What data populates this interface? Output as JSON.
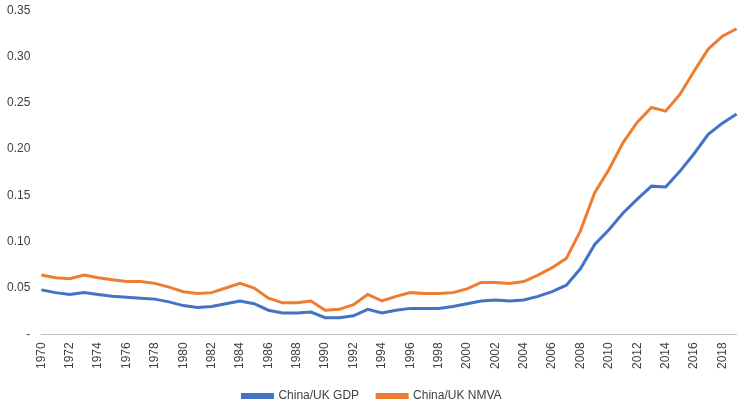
{
  "chart_data": {
    "type": "line",
    "categories": [
      1970,
      null,
      1972,
      null,
      1974,
      null,
      1976,
      null,
      1978,
      null,
      1980,
      null,
      1982,
      null,
      1984,
      null,
      1986,
      null,
      1988,
      null,
      1990,
      null,
      1992,
      null,
      1994,
      null,
      1996,
      null,
      1998,
      null,
      2000,
      null,
      2002,
      null,
      2004,
      null,
      2006,
      null,
      2008,
      null,
      2010,
      null,
      2012,
      null,
      2014,
      null,
      2016,
      null,
      2018,
      null
    ],
    "series": [
      {
        "name": "China/UK GDP",
        "color": "#4472c4",
        "values": [
          0.048,
          0.045,
          0.043,
          0.045,
          0.043,
          0.041,
          0.04,
          0.039,
          0.038,
          0.035,
          0.031,
          0.029,
          0.03,
          0.033,
          0.036,
          0.033,
          0.026,
          0.023,
          0.023,
          0.024,
          0.018,
          0.018,
          0.02,
          0.027,
          0.023,
          0.026,
          0.028,
          0.028,
          0.028,
          0.03,
          0.033,
          0.036,
          0.037,
          0.036,
          0.037,
          0.041,
          0.046,
          0.053,
          0.071,
          0.097,
          0.113,
          0.131,
          0.146,
          0.16,
          0.159,
          0.176,
          0.195,
          0.216,
          0.228,
          0.238
        ]
      },
      {
        "name": "China/UK NMVA",
        "color": "#ed7d31",
        "values": [
          0.064,
          0.061,
          0.06,
          0.064,
          0.061,
          0.059,
          0.057,
          0.057,
          0.055,
          0.051,
          0.046,
          0.044,
          0.045,
          0.05,
          0.055,
          0.05,
          0.039,
          0.034,
          0.034,
          0.036,
          0.026,
          0.027,
          0.032,
          0.043,
          0.036,
          0.041,
          0.045,
          0.044,
          0.044,
          0.045,
          0.049,
          0.056,
          0.056,
          0.055,
          0.057,
          0.064,
          0.072,
          0.082,
          0.112,
          0.153,
          0.178,
          0.207,
          0.229,
          0.245,
          0.241,
          0.259,
          0.284,
          0.308,
          0.322,
          0.33
        ]
      }
    ],
    "ylim": [
      0,
      0.35
    ],
    "yticks": [
      {
        "value": 0,
        "label": "-"
      },
      0.05,
      {
        "value": 0.1,
        "label": "0.10"
      },
      0.15,
      {
        "value": 0.2,
        "label": "0.20"
      },
      0.25,
      {
        "value": 0.3,
        "label": "0.30"
      },
      0.35
    ],
    "grid": false,
    "legend": "bottom"
  }
}
